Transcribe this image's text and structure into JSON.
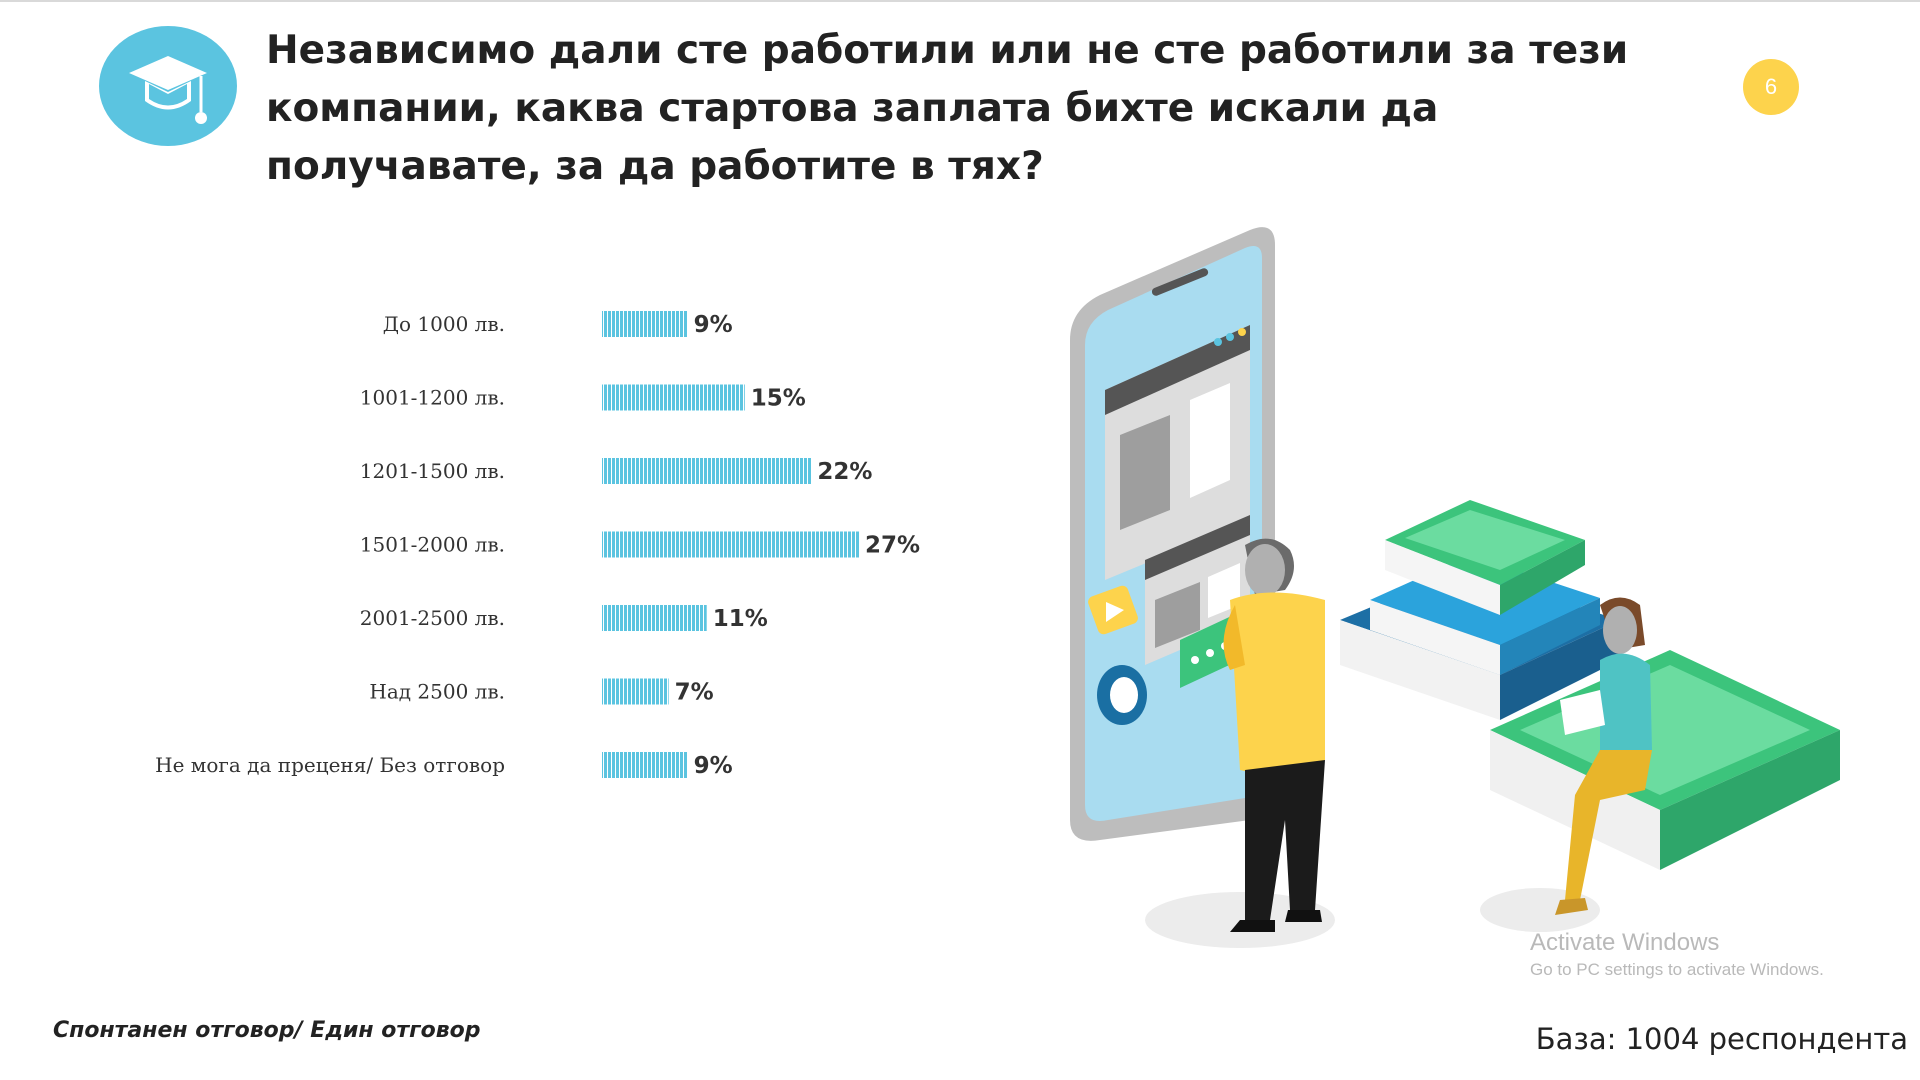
{
  "title": "Независимо дали сте работили или не сте работили за тези компании, каква стартова заплата бихте искали да получавате, за да работите в тях?",
  "page_number": "6",
  "colors": {
    "accent": "#5bc4e0",
    "bar": "#5bc4e0",
    "page_badge": "#fdd34c",
    "text": "#222222"
  },
  "icons": {
    "logo": "graduation-cap-icon"
  },
  "chart_data": {
    "type": "bar",
    "orientation": "horizontal",
    "categories": [
      "До 1000 лв.",
      "1001-1200 лв.",
      "1201-1500 лв.",
      "1501-2000 лв.",
      "2001-2500 лв.",
      "Над 2500 лв.",
      "Не мога да преценя/ Без отговор"
    ],
    "values": [
      9,
      15,
      22,
      27,
      11,
      7,
      9
    ],
    "value_labels": [
      "9%",
      "15%",
      "22%",
      "27%",
      "11%",
      "7%",
      "9%"
    ],
    "unit": "%",
    "xlim": [
      0,
      27
    ],
    "grid": false
  },
  "footnote": "Спонтанен отговор/ Един отговор",
  "base_text": "База: 1004 респондента",
  "watermark": {
    "title": "Activate Windows",
    "subtitle": "Go to PC settings to activate Windows."
  }
}
